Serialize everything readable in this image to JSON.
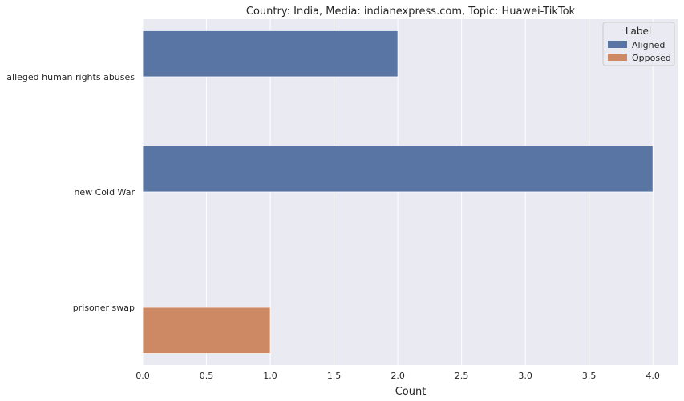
{
  "chart_data": {
    "type": "bar",
    "orientation": "horizontal",
    "title": "Country: India, Media: indianexpress.com, Topic: Huawei-TikTok",
    "xlabel": "Count",
    "ylabel": "",
    "categories": [
      "alleged human rights abuses",
      "new Cold War",
      "prisoner swap"
    ],
    "series": [
      {
        "name": "Aligned",
        "color": "#5875a4",
        "values": [
          2,
          4,
          null
        ]
      },
      {
        "name": "Opposed",
        "color": "#cc8963",
        "values": [
          null,
          null,
          1
        ]
      }
    ],
    "xlim": [
      0,
      4.2
    ],
    "xticks": [
      "0.0",
      "0.5",
      "1.0",
      "1.5",
      "2.0",
      "2.5",
      "3.0",
      "3.5",
      "4.0"
    ],
    "grid": true,
    "legend": {
      "title": "Label",
      "placement": "top-right"
    },
    "background_color": "#eaeaf2"
  }
}
